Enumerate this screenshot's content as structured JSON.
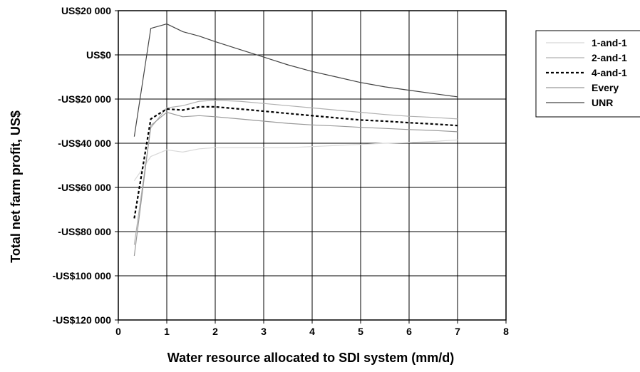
{
  "chart_data": {
    "type": "line",
    "title": "",
    "xlabel": "Water resource allocated to SDI system (mm/d)",
    "ylabel": "Total net farm profit, US$",
    "xlim": [
      0,
      8
    ],
    "ylim": [
      -120000,
      20000
    ],
    "xticks": [
      0,
      1,
      2,
      3,
      4,
      5,
      6,
      7,
      8
    ],
    "xtick_labels": [
      "0",
      "1",
      "2",
      "3",
      "4",
      "5",
      "6",
      "7",
      "8"
    ],
    "yticks": [
      20000,
      0,
      -20000,
      -40000,
      -60000,
      -80000,
      -100000,
      -120000
    ],
    "ytick_labels": [
      "US$20 000",
      "US$0",
      "-US$20 000",
      "-US$40 000",
      "-US$60 000",
      "-US$80 000",
      "-US$100 000",
      "-US$120 000"
    ],
    "grid": true,
    "legend_position": "right",
    "series": [
      {
        "name": "1-and-1",
        "color": "#d8d8d8",
        "dash": "solid",
        "x": [
          0.33,
          0.67,
          1.0,
          1.33,
          1.67,
          2.0,
          2.5,
          3.0,
          3.5,
          4.0,
          4.5,
          5.0,
          5.5,
          6.0,
          6.5,
          7.0
        ],
        "y": [
          -57000,
          -46000,
          -43000,
          -44000,
          -42500,
          -42000,
          -42000,
          -42000,
          -42000,
          -41500,
          -41000,
          -40500,
          -40000,
          -39700,
          -39200,
          -38500
        ]
      },
      {
        "name": "2-and-1",
        "color": "#b0b0b0",
        "dash": "solid",
        "x": [
          0.33,
          0.67,
          1.0,
          1.33,
          1.67,
          2.0,
          2.5,
          3.0,
          3.5,
          4.0,
          4.5,
          5.0,
          5.5,
          6.0,
          6.5,
          7.0
        ],
        "y": [
          -86000,
          -33000,
          -24000,
          -23000,
          -21000,
          -20500,
          -21000,
          -22000,
          -23000,
          -24000,
          -25000,
          -26000,
          -27000,
          -27800,
          -28300,
          -29000
        ]
      },
      {
        "name": "4-and-1",
        "color": "#000000",
        "dash": "dashed",
        "x": [
          0.33,
          0.67,
          1.0,
          1.33,
          1.67,
          2.0,
          2.5,
          3.0,
          3.5,
          4.0,
          4.5,
          5.0,
          5.5,
          6.0,
          6.5,
          7.0
        ],
        "y": [
          -74000,
          -29000,
          -24500,
          -25000,
          -23500,
          -23500,
          -24500,
          -25500,
          -26500,
          -27500,
          -28500,
          -29500,
          -30000,
          -30700,
          -31300,
          -32000
        ]
      },
      {
        "name": "Every",
        "color": "#999999",
        "dash": "solid",
        "x": [
          0.33,
          0.67,
          1.0,
          1.33,
          1.67,
          2.0,
          2.5,
          3.0,
          3.5,
          4.0,
          4.5,
          5.0,
          5.5,
          6.0,
          6.5,
          7.0
        ],
        "y": [
          -91000,
          -32000,
          -26000,
          -28000,
          -27500,
          -28000,
          -29000,
          -30000,
          -31000,
          -31700,
          -32200,
          -32800,
          -33300,
          -33800,
          -34200,
          -34800
        ]
      },
      {
        "name": "UNR",
        "color": "#444444",
        "dash": "solid",
        "x": [
          0.33,
          0.67,
          1.0,
          1.33,
          1.67,
          2.0,
          2.5,
          3.0,
          3.5,
          4.0,
          4.5,
          5.0,
          5.5,
          6.0,
          6.5,
          7.0
        ],
        "y": [
          -37000,
          12000,
          14000,
          10500,
          8500,
          6000,
          2500,
          -1000,
          -4500,
          -7500,
          -10000,
          -12500,
          -14500,
          -16000,
          -17500,
          -19000
        ]
      }
    ]
  }
}
